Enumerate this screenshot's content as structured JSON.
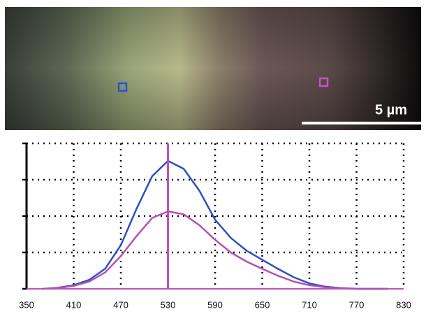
{
  "chart_data": {
    "type": "line",
    "scale_bar_label": "5 µm",
    "x": [
      370,
      390,
      410,
      430,
      450,
      470,
      490,
      510,
      530,
      550,
      570,
      590,
      610,
      630,
      650,
      670,
      690,
      710,
      730,
      750,
      770,
      790,
      810
    ],
    "series": [
      {
        "color": "#2f4fbf",
        "values": [
          0,
          0.03,
          0.1,
          0.25,
          0.55,
          1.2,
          2.2,
          3.1,
          3.52,
          3.3,
          2.7,
          1.9,
          1.4,
          1.05,
          0.8,
          0.55,
          0.32,
          0.15,
          0.06,
          0.02,
          0,
          0,
          0
        ]
      },
      {
        "color": "#b84fb4",
        "values": [
          0,
          0.02,
          0.08,
          0.2,
          0.45,
          0.9,
          1.45,
          1.95,
          2.13,
          2.05,
          1.75,
          1.35,
          1.0,
          0.75,
          0.55,
          0.36,
          0.2,
          0.1,
          0.04,
          0.01,
          0,
          0,
          0
        ]
      }
    ],
    "marker_x": 530,
    "marker_color": "#c050c0",
    "xlim": [
      350,
      830
    ],
    "xticks": [
      350,
      410,
      470,
      530,
      590,
      650,
      710,
      770,
      830
    ],
    "ylim": [
      0,
      4
    ],
    "yticks": [
      0,
      1,
      2,
      3,
      4
    ],
    "grid": true
  }
}
